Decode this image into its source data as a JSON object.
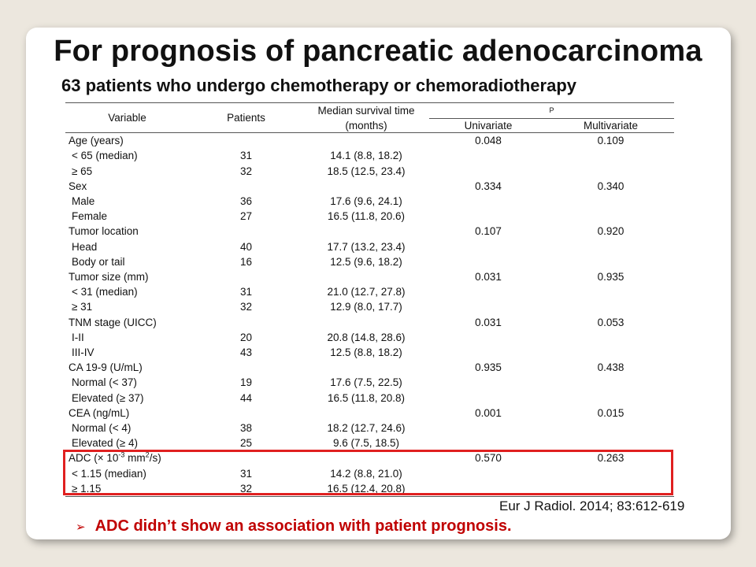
{
  "title": "For prognosis of pancreatic adenocarcinoma",
  "subtitle": "63 patients who undergo chemotherapy or chemoradiotherapy",
  "table": {
    "headers": {
      "variable": "Variable",
      "patients": "Patients",
      "median_line1": "Median survival time",
      "median_line2": "(months)",
      "p": "P",
      "univariate": "Univariate",
      "multivariate": "Multivariate"
    },
    "rows": [
      {
        "label": "Age (years)",
        "patients": "",
        "median": "",
        "uni": "0.048",
        "multi": "0.109"
      },
      {
        "label": " < 65 (median)",
        "patients": "31",
        "median": "14.1 (8.8, 18.2)",
        "uni": "",
        "multi": ""
      },
      {
        "label": " ≥ 65",
        "patients": "32",
        "median": "18.5 (12.5, 23.4)",
        "uni": "",
        "multi": ""
      },
      {
        "label": "Sex",
        "patients": "",
        "median": "",
        "uni": "0.334",
        "multi": "0.340"
      },
      {
        "label": " Male",
        "patients": "36",
        "median": "17.6 (9.6, 24.1)",
        "uni": "",
        "multi": ""
      },
      {
        "label": " Female",
        "patients": "27",
        "median": "16.5 (11.8, 20.6)",
        "uni": "",
        "multi": ""
      },
      {
        "label": "Tumor location",
        "patients": "",
        "median": "",
        "uni": "0.107",
        "multi": "0.920"
      },
      {
        "label": " Head",
        "patients": "40",
        "median": "17.7 (13.2, 23.4)",
        "uni": "",
        "multi": ""
      },
      {
        "label": " Body or tail",
        "patients": "16",
        "median": "12.5 (9.6, 18.2)",
        "uni": "",
        "multi": ""
      },
      {
        "label": "Tumor  size (mm)",
        "patients": "",
        "median": "",
        "uni": "0.031",
        "multi": "0.935"
      },
      {
        "label": " < 31 (median)",
        "patients": "31",
        "median": "21.0 (12.7, 27.8)",
        "uni": "",
        "multi": ""
      },
      {
        "label": " ≥ 31",
        "patients": "32",
        "median": "12.9 (8.0, 17.7)",
        "uni": "",
        "multi": ""
      },
      {
        "label": "TNM stage (UICC)",
        "patients": "",
        "median": "",
        "uni": "0.031",
        "multi": "0.053"
      },
      {
        "label": " I-II",
        "patients": "20",
        "median": "20.8 (14.8, 28.6)",
        "uni": "",
        "multi": ""
      },
      {
        "label": " III-IV",
        "patients": "43",
        "median": "12.5 (8.8, 18.2)",
        "uni": "",
        "multi": ""
      },
      {
        "label": "CA 19-9 (U/mL)",
        "patients": "",
        "median": "",
        "uni": "0.935",
        "multi": "0.438"
      },
      {
        "label": " Normal  (< 37)",
        "patients": "19",
        "median": "17.6 (7.5, 22.5)",
        "uni": "",
        "multi": ""
      },
      {
        "label": " Elevated (≥ 37)",
        "patients": "44",
        "median": "16.5 (11.8, 20.8)",
        "uni": "",
        "multi": ""
      },
      {
        "label": "CEA (ng/mL)",
        "patients": "",
        "median": "",
        "uni": "0.001",
        "multi": "0.015"
      },
      {
        "label": " Normal  (< 4)",
        "patients": "38",
        "median": "18.2 (12.7, 24.6)",
        "uni": "",
        "multi": ""
      },
      {
        "label": " Elevated (≥ 4)",
        "patients": "25",
        "median": "9.6 (7.5, 18.5)",
        "uni": "",
        "multi": ""
      }
    ],
    "adc_header": {
      "prefix": "ADC (× 10",
      "exp": "-3",
      "mid": " mm",
      "exp2": "2",
      "suffix": "/s)",
      "uni": "0.570",
      "multi": "0.263"
    },
    "adc_rows": [
      {
        "label": " < 1.15 (median)",
        "patients": "31",
        "median": "14.2 (8.8, 21.0)"
      },
      {
        "label": " ≥ 1.15",
        "patients": "32",
        "median": "16.5 (12.4, 20.8)"
      }
    ]
  },
  "citation": "Eur J Radiol. 2014; 83:612-619",
  "note": {
    "arrow": "➢",
    "text": "ADC didn’t show an association with patient prognosis."
  },
  "colors": {
    "highlight": "#e02020",
    "note": "#c00000"
  }
}
